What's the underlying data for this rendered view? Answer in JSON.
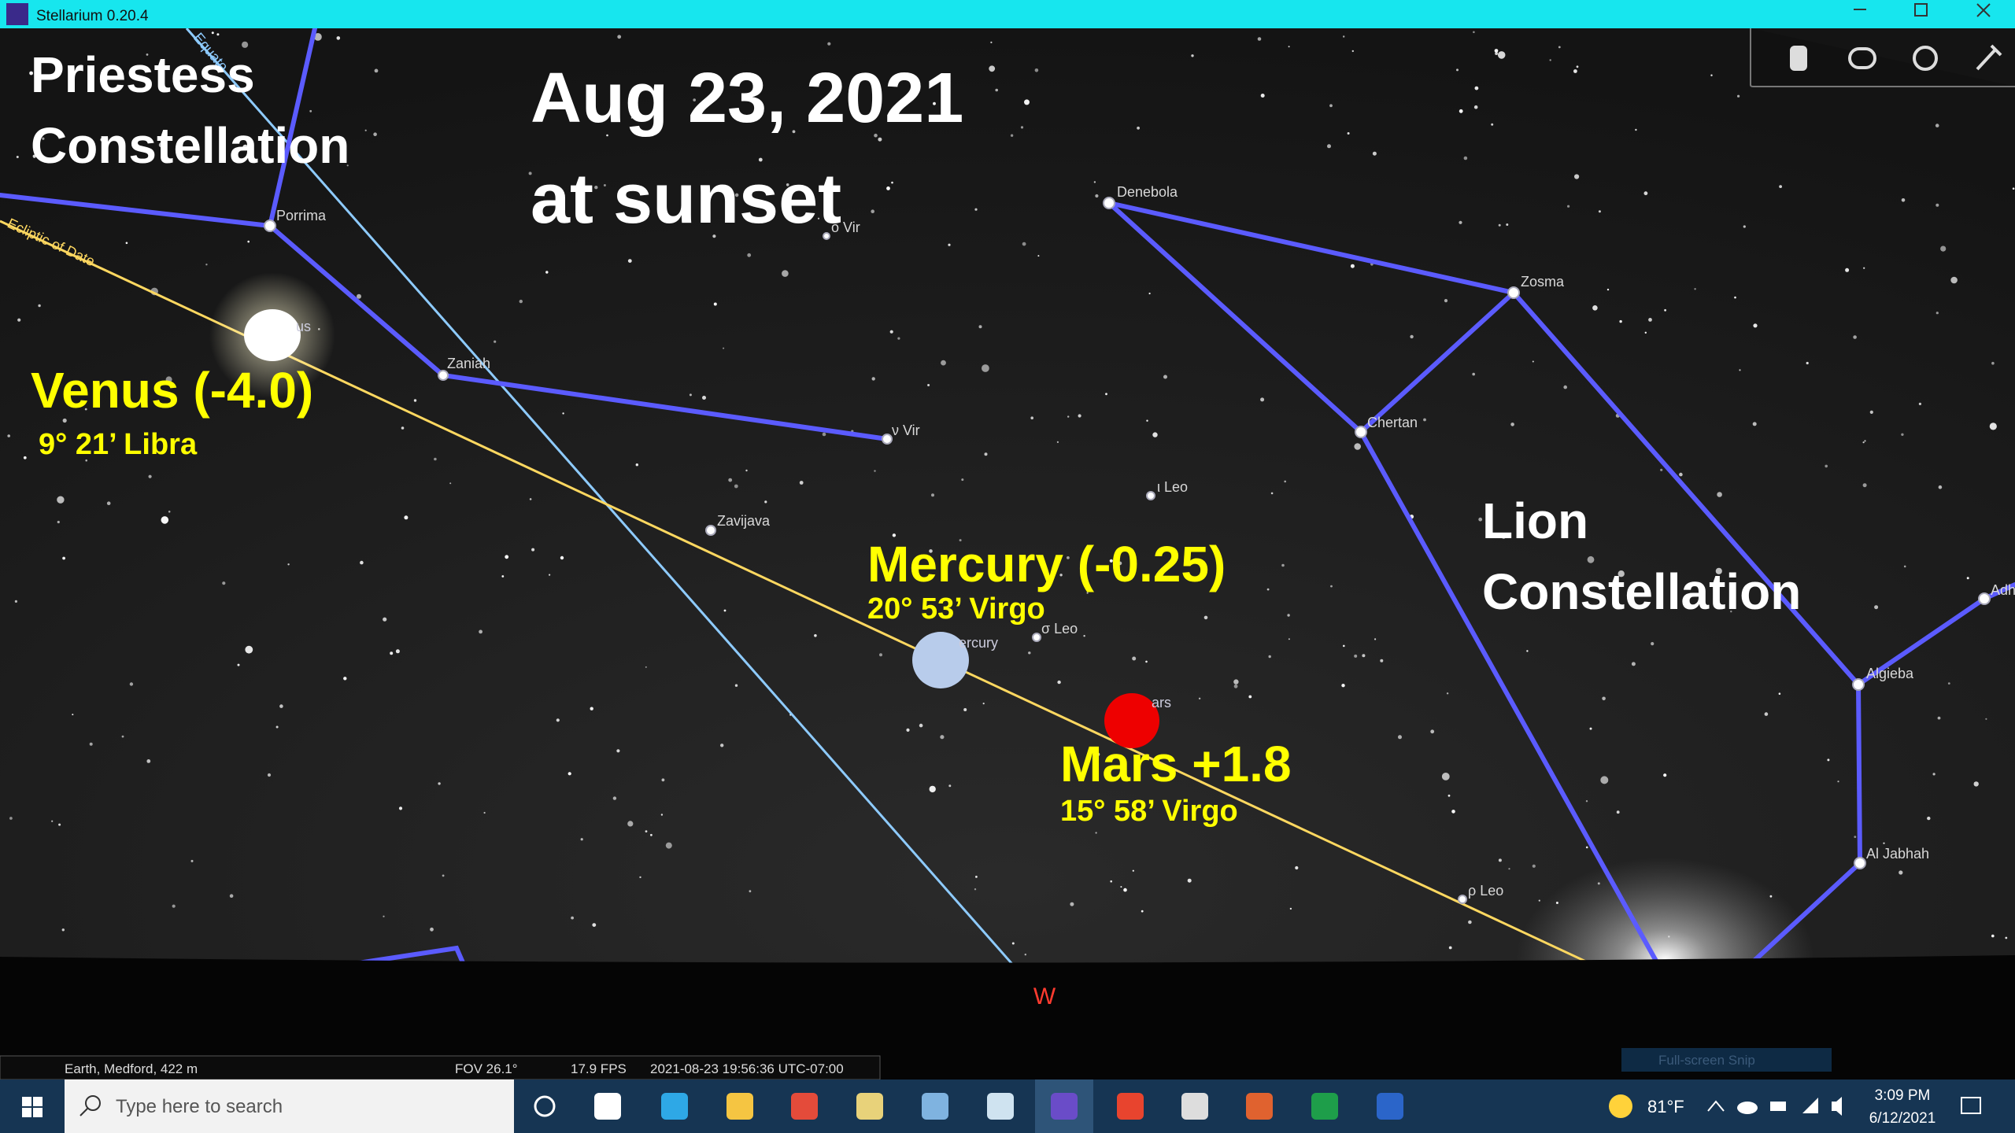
{
  "window": {
    "title": "Stellarium 0.20.4"
  },
  "annotations": {
    "priestess": {
      "line1": "Priestess",
      "line2": "Constellation"
    },
    "date": {
      "line1": "Aug 23, 2021",
      "line2": "at sunset"
    },
    "venus": {
      "name": "Venus (-4.0)",
      "position": "9° 21’ Libra"
    },
    "mercury": {
      "name": "Mercury (-0.25)",
      "position": "20° 53’ Virgo"
    },
    "mars": {
      "name": "Mars +1.8",
      "position": "15° 58’ Virgo"
    },
    "lion": {
      "line1": "Lion",
      "line2": "Constellation"
    }
  },
  "sky_labels": {
    "denebola": "Denebola",
    "zosma": "Zosma",
    "chertan": "Chertan",
    "iota_leo": "ι Leo",
    "porrima": "Porrima",
    "zaniah": "Zaniah",
    "nu_vir": "ν Vir",
    "zavijava": "Zavijava",
    "sigma_leo": "σ Leo",
    "rho_leo": "ρ Leo",
    "algieba": "Algieba",
    "al_jabhah": "Al Jabhah",
    "adh": "Adh",
    "omicron_vir": "ο Vir",
    "venus": "us",
    "mercury": "ercury",
    "mars": "ars",
    "ecliptic": "Ecliptic of Date",
    "equator": "Equato",
    "west": "W"
  },
  "status_bar": {
    "location": "Earth, Medford, 422 m",
    "fov": "FOV 26.1°",
    "fps": "17.9 FPS",
    "datetime": "2021-08-23 19:56:36 UTC-07:00"
  },
  "snip_label": "Full-screen Snip",
  "taskbar": {
    "search": "Type here to search",
    "weather": "81°F",
    "time": "3:09 PM",
    "date": "6/12/2021"
  }
}
